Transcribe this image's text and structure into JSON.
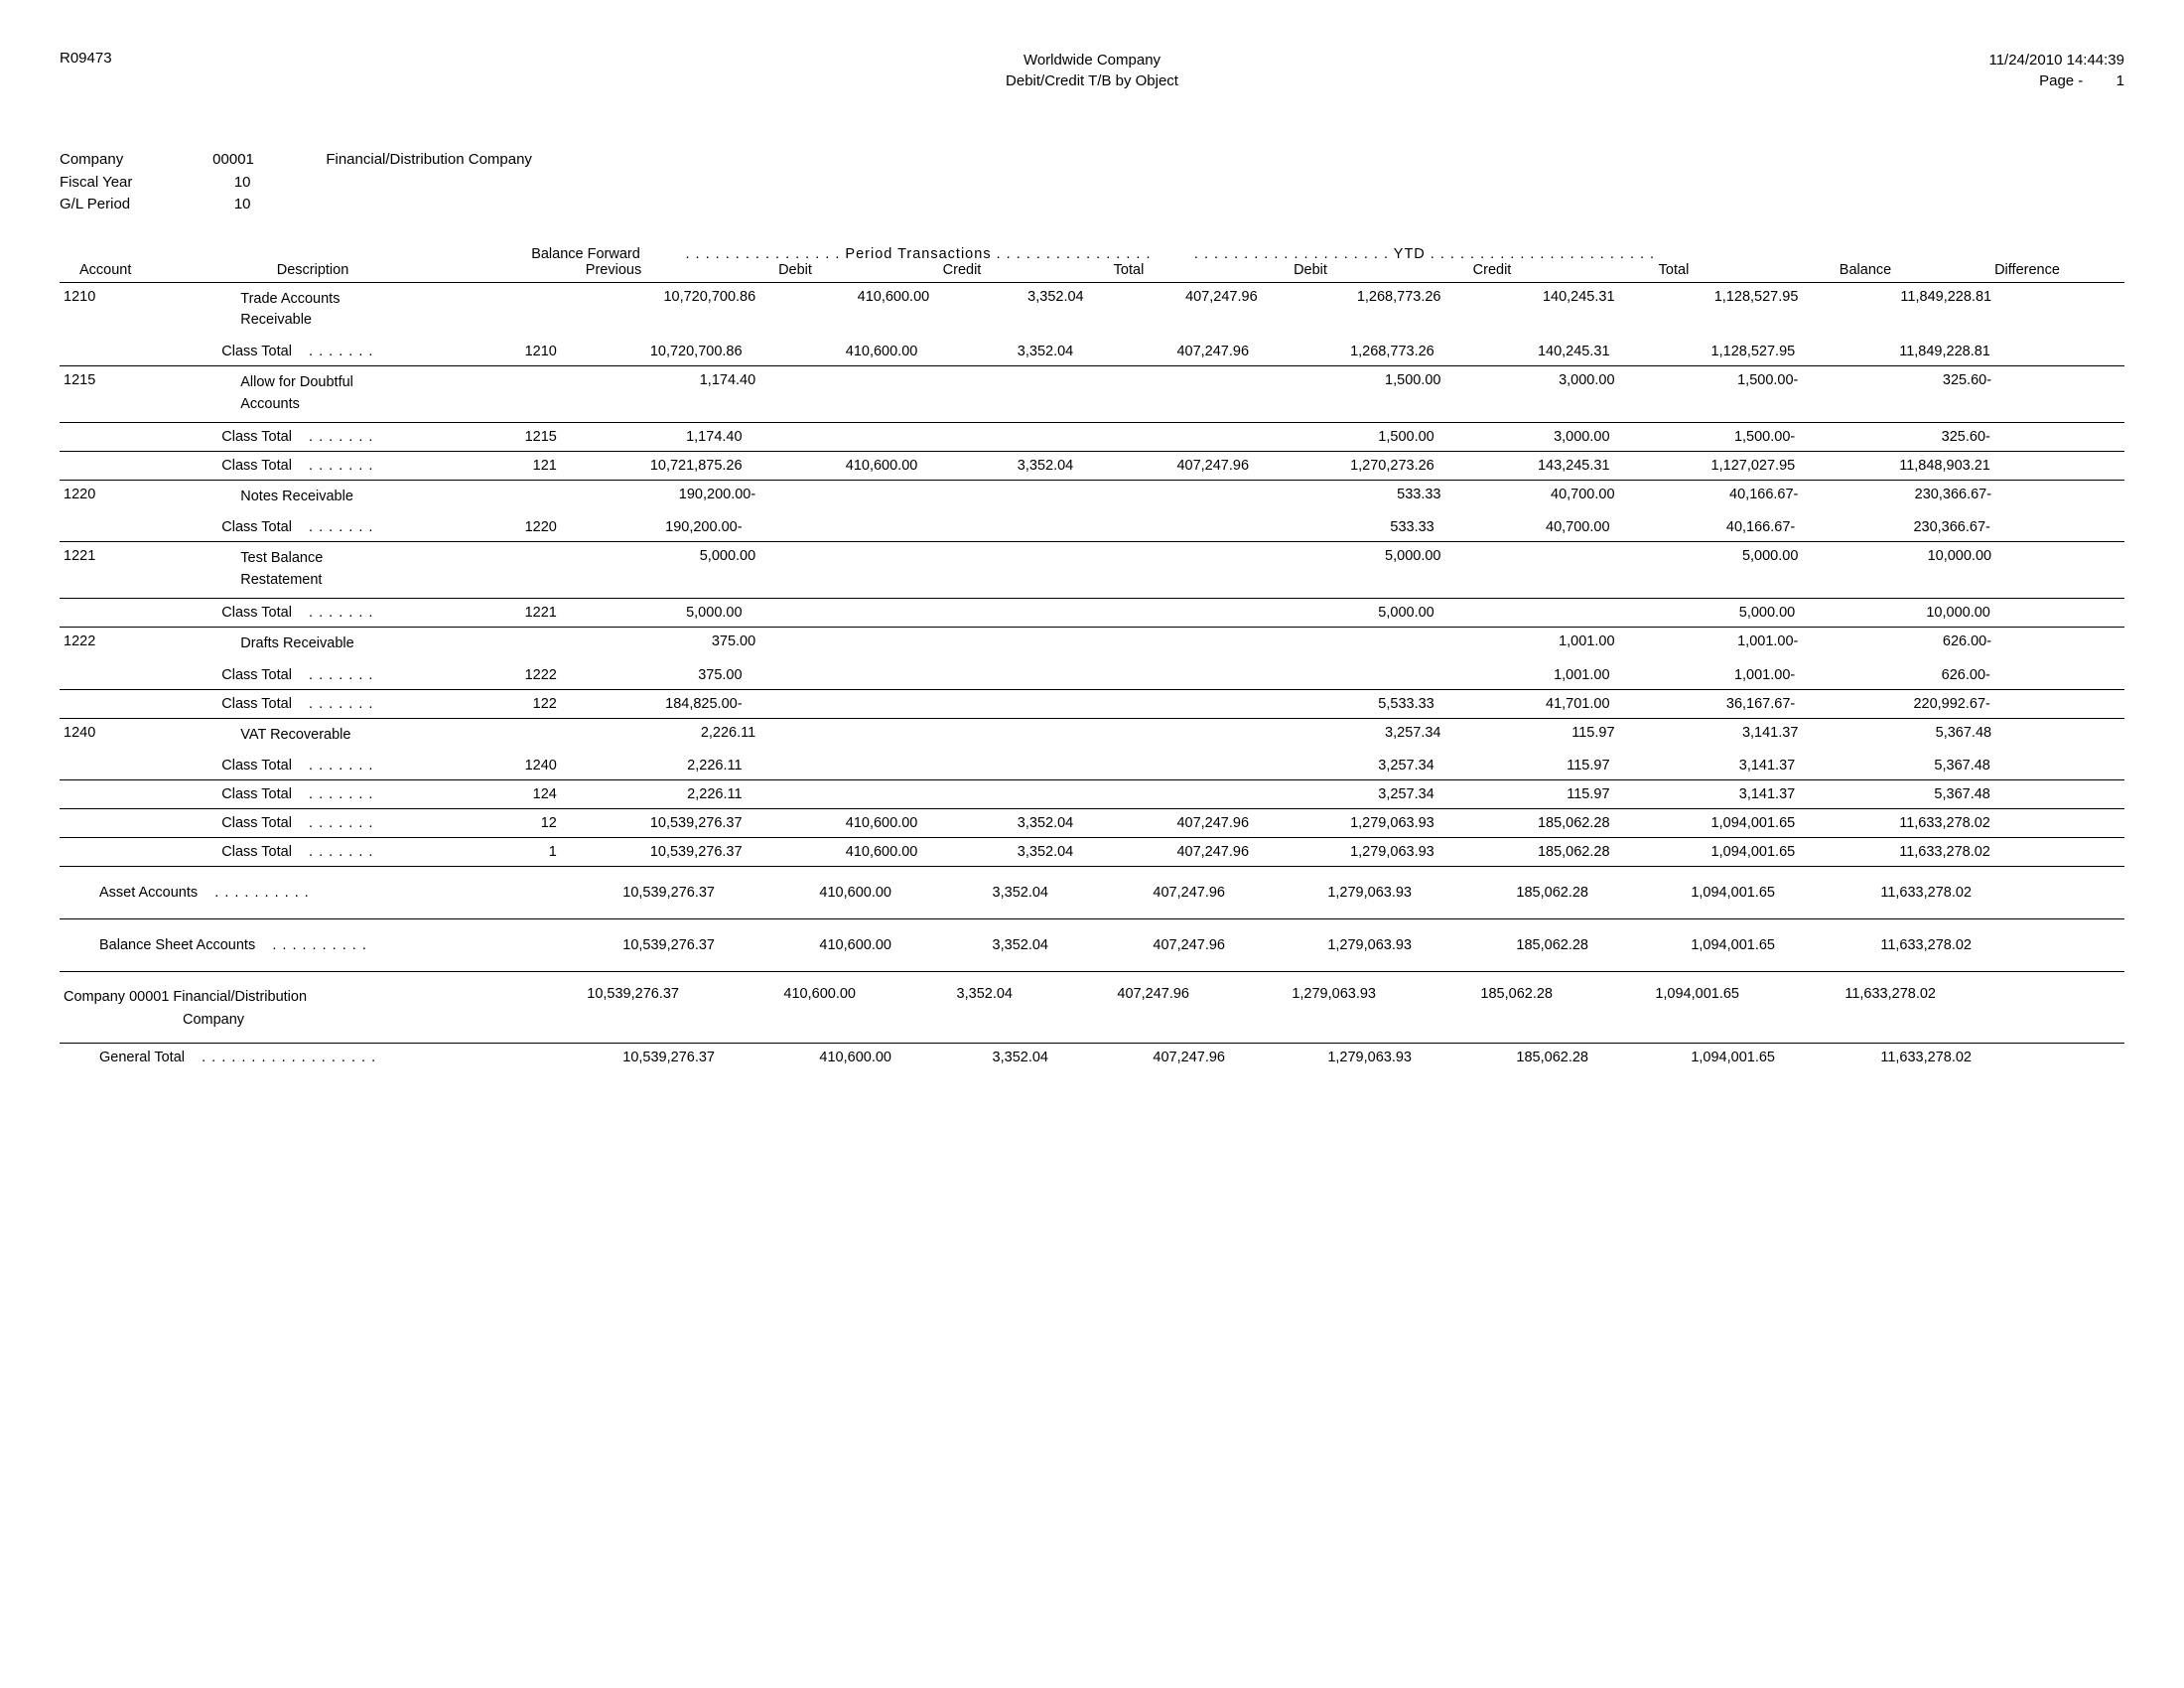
{
  "report_id": "R09473",
  "company_name": "Worldwide Company",
  "report_title": "Debit/Credit T/B by Object",
  "timestamp": "11/24/2010 14:44:39",
  "page_label": "Page -",
  "page_num": "1",
  "meta": {
    "company_label": "Company",
    "company_code": "00001",
    "company_desc": "Financial/Distribution Company",
    "fy_label": "Fiscal Year",
    "fy_val": "10",
    "gl_label": "G/L Period",
    "gl_val": "10"
  },
  "group_labels": {
    "balance_forward": "Balance Forward",
    "period_trans": ". . . . . . . . . . . . . . . . Period Transactions . . . . . . . . . . . . . . . .",
    "ytd": ". . . . . . . . . . . . . . . . . . . . YTD . . . . . . . . . . . . . . . . . . . . . . ."
  },
  "cols": {
    "account": "Account",
    "description": "Description",
    "previous": "Previous",
    "debit": "Debit",
    "credit": "Credit",
    "total": "Total",
    "ydebit": "Debit",
    "ycredit": "Credit",
    "ytotal": "Total",
    "balance": "Balance",
    "difference": "Difference"
  },
  "class_total_label": "Class Total",
  "rows": [
    {
      "type": "acct",
      "acct": "1210",
      "desc": "Trade Accounts Receivable",
      "prev": "10,720,700.86",
      "debit": "410,600.00",
      "credit": "3,352.04",
      "total": "407,247.96",
      "ydebit": "1,268,773.26",
      "ycredit": "140,245.31",
      "ytotal": "1,128,527.95",
      "bal": "11,849,228.81",
      "diff": ""
    },
    {
      "type": "ct",
      "code": "1210",
      "prev": "10,720,700.86",
      "debit": "410,600.00",
      "credit": "3,352.04",
      "total": "407,247.96",
      "ydebit": "1,268,773.26",
      "ycredit": "140,245.31",
      "ytotal": "1,128,527.95",
      "bal": "11,849,228.81",
      "diff": "",
      "bt": false,
      "bb": true
    },
    {
      "type": "acct",
      "acct": "1215",
      "desc": "Allow for Doubtful Accounts",
      "prev": "1,174.40",
      "debit": "",
      "credit": "",
      "total": "",
      "ydebit": "1,500.00",
      "ycredit": "3,000.00",
      "ytotal": "1,500.00-",
      "bal": "325.60-",
      "diff": ""
    },
    {
      "type": "ct",
      "code": "1215",
      "prev": "1,174.40",
      "debit": "",
      "credit": "",
      "total": "",
      "ydebit": "1,500.00",
      "ycredit": "3,000.00",
      "ytotal": "1,500.00-",
      "bal": "325.60-",
      "diff": "",
      "bt": true,
      "bb": true
    },
    {
      "type": "ct",
      "code": "121",
      "prev": "10,721,875.26",
      "debit": "410,600.00",
      "credit": "3,352.04",
      "total": "407,247.96",
      "ydebit": "1,270,273.26",
      "ycredit": "143,245.31",
      "ytotal": "1,127,027.95",
      "bal": "11,848,903.21",
      "diff": "",
      "bt": false,
      "bb": true
    },
    {
      "type": "acct",
      "acct": "1220",
      "desc": "Notes Receivable",
      "prev": "190,200.00-",
      "debit": "",
      "credit": "",
      "total": "",
      "ydebit": "533.33",
      "ycredit": "40,700.00",
      "ytotal": "40,166.67-",
      "bal": "230,366.67-",
      "diff": ""
    },
    {
      "type": "ct",
      "code": "1220",
      "prev": "190,200.00-",
      "debit": "",
      "credit": "",
      "total": "",
      "ydebit": "533.33",
      "ycredit": "40,700.00",
      "ytotal": "40,166.67-",
      "bal": "230,366.67-",
      "diff": "",
      "bt": false,
      "bb": true
    },
    {
      "type": "acct",
      "acct": "1221",
      "desc": "Test Balance Restatement",
      "prev": "5,000.00",
      "debit": "",
      "credit": "",
      "total": "",
      "ydebit": "5,000.00",
      "ycredit": "",
      "ytotal": "5,000.00",
      "bal": "10,000.00",
      "diff": ""
    },
    {
      "type": "ct",
      "code": "1221",
      "prev": "5,000.00",
      "debit": "",
      "credit": "",
      "total": "",
      "ydebit": "5,000.00",
      "ycredit": "",
      "ytotal": "5,000.00",
      "bal": "10,000.00",
      "diff": "",
      "bt": true,
      "bb": true
    },
    {
      "type": "acct",
      "acct": "1222",
      "desc": "Drafts Receivable",
      "prev": "375.00",
      "debit": "",
      "credit": "",
      "total": "",
      "ydebit": "",
      "ycredit": "1,001.00",
      "ytotal": "1,001.00-",
      "bal": "626.00-",
      "diff": ""
    },
    {
      "type": "ct",
      "code": "1222",
      "prev": "375.00",
      "debit": "",
      "credit": "",
      "total": "",
      "ydebit": "",
      "ycredit": "1,001.00",
      "ytotal": "1,001.00-",
      "bal": "626.00-",
      "diff": "",
      "bt": false,
      "bb": true
    },
    {
      "type": "ct",
      "code": "122",
      "prev": "184,825.00-",
      "debit": "",
      "credit": "",
      "total": "",
      "ydebit": "5,533.33",
      "ycredit": "41,701.00",
      "ytotal": "36,167.67-",
      "bal": "220,992.67-",
      "diff": "",
      "bt": false,
      "bb": true
    },
    {
      "type": "acct",
      "acct": "1240",
      "desc": "VAT Recoverable",
      "prev": "2,226.11",
      "debit": "",
      "credit": "",
      "total": "",
      "ydebit": "3,257.34",
      "ycredit": "115.97",
      "ytotal": "3,141.37",
      "bal": "5,367.48",
      "diff": ""
    },
    {
      "type": "ct",
      "code": "1240",
      "prev": "2,226.11",
      "debit": "",
      "credit": "",
      "total": "",
      "ydebit": "3,257.34",
      "ycredit": "115.97",
      "ytotal": "3,141.37",
      "bal": "5,367.48",
      "diff": "",
      "bt": false,
      "bb": true
    },
    {
      "type": "ct",
      "code": "124",
      "prev": "2,226.11",
      "debit": "",
      "credit": "",
      "total": "",
      "ydebit": "3,257.34",
      "ycredit": "115.97",
      "ytotal": "3,141.37",
      "bal": "5,367.48",
      "diff": "",
      "bt": false,
      "bb": true
    },
    {
      "type": "ct",
      "code": "12",
      "prev": "10,539,276.37",
      "debit": "410,600.00",
      "credit": "3,352.04",
      "total": "407,247.96",
      "ydebit": "1,279,063.93",
      "ycredit": "185,062.28",
      "ytotal": "1,094,001.65",
      "bal": "11,633,278.02",
      "diff": "",
      "bt": false,
      "bb": true
    },
    {
      "type": "ct",
      "code": "1",
      "prev": "10,539,276.37",
      "debit": "410,600.00",
      "credit": "3,352.04",
      "total": "407,247.96",
      "ydebit": "1,279,063.93",
      "ycredit": "185,062.28",
      "ytotal": "1,094,001.65",
      "bal": "11,633,278.02",
      "diff": "",
      "bt": false,
      "bb": true
    },
    {
      "type": "sum",
      "label": "Asset Accounts",
      "dots": "long",
      "prev": "10,539,276.37",
      "debit": "410,600.00",
      "credit": "3,352.04",
      "total": "407,247.96",
      "ydebit": "1,279,063.93",
      "ycredit": "185,062.28",
      "ytotal": "1,094,001.65",
      "bal": "11,633,278.02",
      "diff": "",
      "bt": false,
      "bb": true,
      "pad": true
    },
    {
      "type": "sum",
      "label": "Balance Sheet Accounts",
      "dots": "long",
      "prev": "10,539,276.37",
      "debit": "410,600.00",
      "credit": "3,352.04",
      "total": "407,247.96",
      "ydebit": "1,279,063.93",
      "ycredit": "185,062.28",
      "ytotal": "1,094,001.65",
      "bal": "11,633,278.02",
      "diff": "",
      "bt": false,
      "bb": true,
      "pad": true
    },
    {
      "type": "sum2",
      "label1": "Company 00001 Financial/Distribution",
      "label2": "Company",
      "prev": "10,539,276.37",
      "debit": "410,600.00",
      "credit": "3,352.04",
      "total": "407,247.96",
      "ydebit": "1,279,063.93",
      "ycredit": "185,062.28",
      "ytotal": "1,094,001.65",
      "bal": "11,633,278.02",
      "diff": "",
      "bt": false,
      "bb": true
    },
    {
      "type": "sum",
      "label": "General Total",
      "dots": "xl",
      "prev": "10,539,276.37",
      "debit": "410,600.00",
      "credit": "3,352.04",
      "total": "407,247.96",
      "ydebit": "1,279,063.93",
      "ycredit": "185,062.28",
      "ytotal": "1,094,001.65",
      "bal": "11,633,278.02",
      "diff": "",
      "bt": false,
      "bb": false
    }
  ]
}
